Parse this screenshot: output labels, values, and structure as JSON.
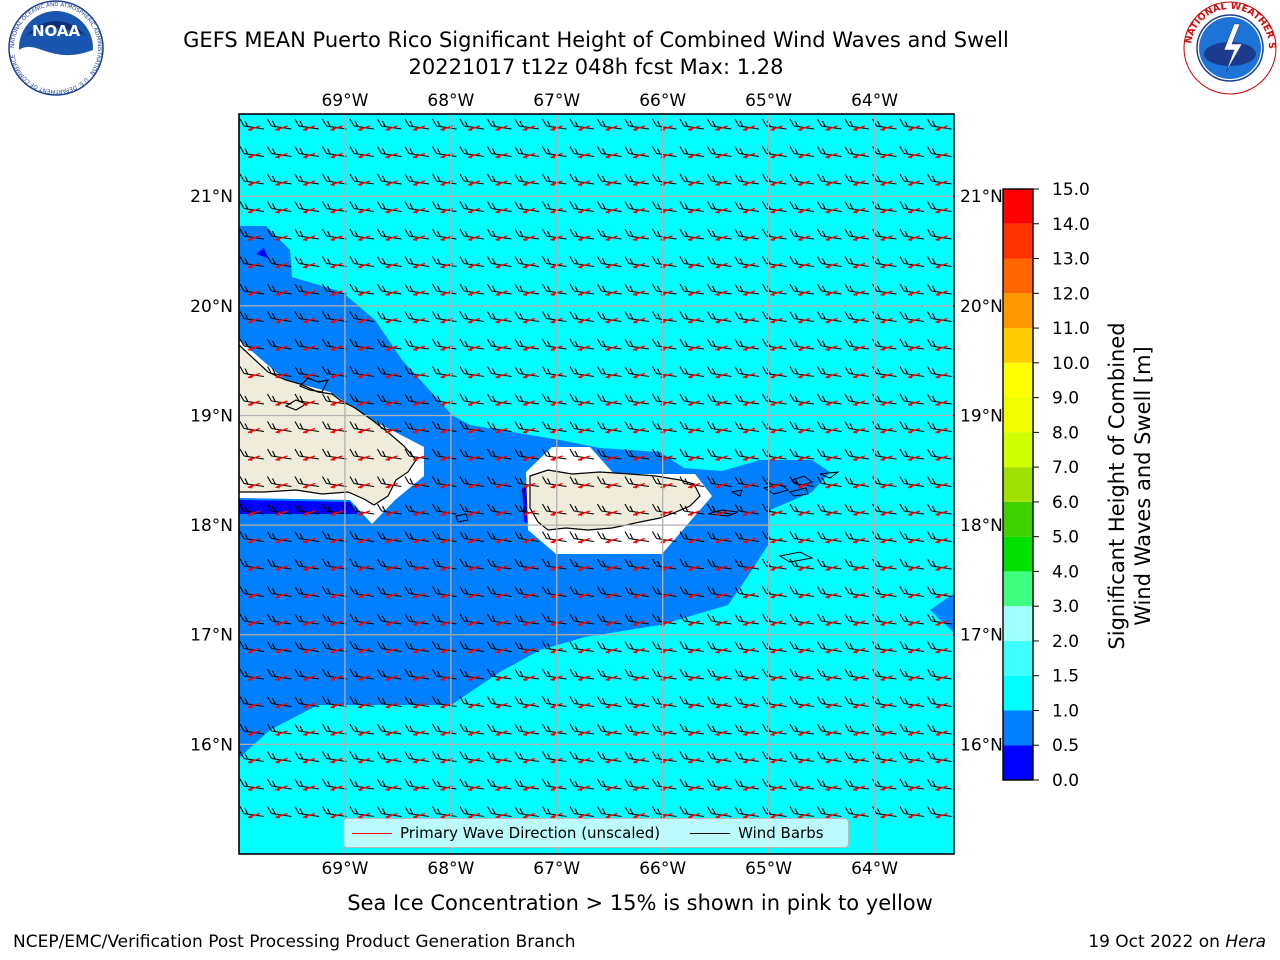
{
  "title": {
    "line1": "GEFS MEAN Puerto Rico Significant Height of Combined Wind Waves and Swell",
    "line2": "20221017 t12z 048h fcst   Max: 1.28"
  },
  "logos": {
    "left": {
      "name": "noaa-logo",
      "text": "NOAA",
      "ring_text": "NATIONAL OCEANIC AND ATMOSPHERIC ADMINISTRATION · U.S. DEPARTMENT OF COMMERCE"
    },
    "right": {
      "name": "nws-logo",
      "ring_text": "NATIONAL WEATHER SERVICE"
    }
  },
  "map": {
    "lon_ticks": [
      "69°W",
      "68°W",
      "67°W",
      "66°W",
      "65°W",
      "64°W"
    ],
    "lat_ticks_left": [
      "21°N",
      "20°N",
      "19°N",
      "18°N",
      "17°N",
      "16°N"
    ],
    "lat_ticks_right": [
      "21°N",
      "20°N",
      "19°N",
      "18°N",
      "17°N",
      "16°N"
    ],
    "lon_values": [
      -69,
      -68,
      -67,
      -66,
      -65,
      -64
    ],
    "lat_values": [
      21,
      20,
      19,
      18,
      17,
      16
    ],
    "extent": {
      "lon": [
        -70.0,
        -63.25
      ],
      "lat": [
        15.0,
        21.75
      ]
    },
    "ocean_color": "#00ffff",
    "band_color_05_10": "#0080ff",
    "band_color_00_05": "#0000ff",
    "land_color": "#efecdc",
    "wave_arrow_color": "#ff0000",
    "barb_color": "#000000"
  },
  "legend": {
    "wave_label": "Primary Wave Direction (unscaled)",
    "barb_label": "Wind Barbs"
  },
  "colorbar": {
    "label_line1": "Significant Height of Combined",
    "label_line2": "Wind Waves and Swell [m]",
    "ticks": [
      "0.0",
      "0.5",
      "1.0",
      "1.5",
      "2.0",
      "3.0",
      "4.0",
      "5.0",
      "6.0",
      "7.0",
      "8.0",
      "9.0",
      "10.0",
      "11.0",
      "12.0",
      "13.0",
      "14.0",
      "15.0"
    ],
    "tick_values": [
      0.0,
      0.5,
      1.0,
      1.5,
      2.0,
      3.0,
      4.0,
      5.0,
      6.0,
      7.0,
      8.0,
      9.0,
      10.0,
      11.0,
      12.0,
      13.0,
      14.0,
      15.0
    ],
    "colors": [
      "#0000ff",
      "#0080ff",
      "#00ffff",
      "#40ffff",
      "#a0ffff",
      "#40ff80",
      "#00e000",
      "#40d000",
      "#a0e000",
      "#d0ff00",
      "#f0ff00",
      "#ffff00",
      "#ffcc00",
      "#ff9900",
      "#ff6600",
      "#ff3300",
      "#ff0000"
    ]
  },
  "subtitle": "Sea Ice Concentration > 15% is shown in pink to yellow",
  "footer": {
    "left": "NCEP/EMC/Verification Post Processing Product Generation Branch",
    "right_date": "19 Oct 2022 on ",
    "right_host": "Hera"
  },
  "chart_data": {
    "type": "heatmap",
    "title": "GEFS MEAN Puerto Rico Significant Height of Combined Wind Waves and Swell",
    "run": "20221017 t12z 048h fcst",
    "max": 1.28,
    "units": "m",
    "colorbar_range": [
      0.0,
      15.0
    ],
    "xlabel": "",
    "ylabel": "",
    "lon_range": [
      -70.0,
      -63.25
    ],
    "lat_range": [
      15.0,
      21.75
    ]
  }
}
